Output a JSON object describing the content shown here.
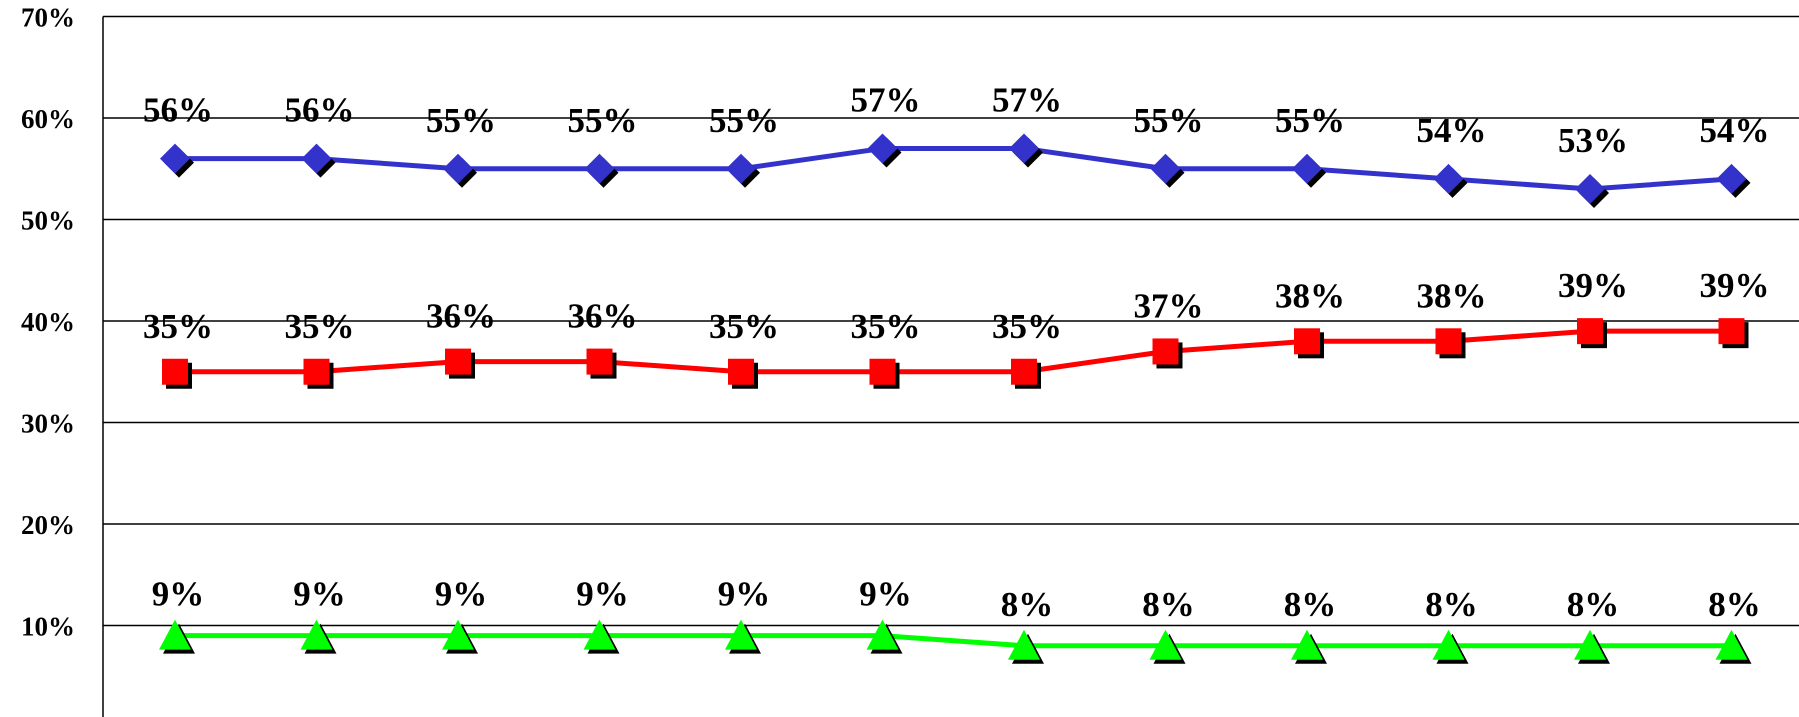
{
  "chart_data": {
    "type": "line",
    "ylim": [
      0,
      70
    ],
    "y_ticks": [
      "70%",
      "60%",
      "50%",
      "40%",
      "30%",
      "20%",
      "10%"
    ],
    "y_tick_values": [
      70,
      60,
      50,
      40,
      30,
      20,
      10
    ],
    "grid": true,
    "legend": "none",
    "x_count": 12,
    "series": [
      {
        "marker": "diamond",
        "color": "#3333cc",
        "values": [
          56,
          56,
          55,
          55,
          55,
          57,
          57,
          55,
          55,
          54,
          53,
          54
        ],
        "labels": [
          "56%",
          "56%",
          "55%",
          "55%",
          "55%",
          "57%",
          "57%",
          "55%",
          "55%",
          "54%",
          "53%",
          "54%"
        ]
      },
      {
        "marker": "square",
        "color": "#ff0000",
        "values": [
          35,
          35,
          36,
          36,
          35,
          35,
          35,
          37,
          38,
          38,
          39,
          39
        ],
        "labels": [
          "35%",
          "35%",
          "36%",
          "36%",
          "35%",
          "35%",
          "35%",
          "37%",
          "38%",
          "38%",
          "39%",
          "39%"
        ]
      },
      {
        "marker": "triangle",
        "color": "#00ff00",
        "values": [
          9,
          9,
          9,
          9,
          9,
          9,
          8,
          8,
          8,
          8,
          8,
          8
        ],
        "labels": [
          "9%",
          "9%",
          "9%",
          "9%",
          "9%",
          "9%",
          "8%",
          "8%",
          "8%",
          "8%",
          "8%",
          "8%"
        ]
      }
    ]
  }
}
